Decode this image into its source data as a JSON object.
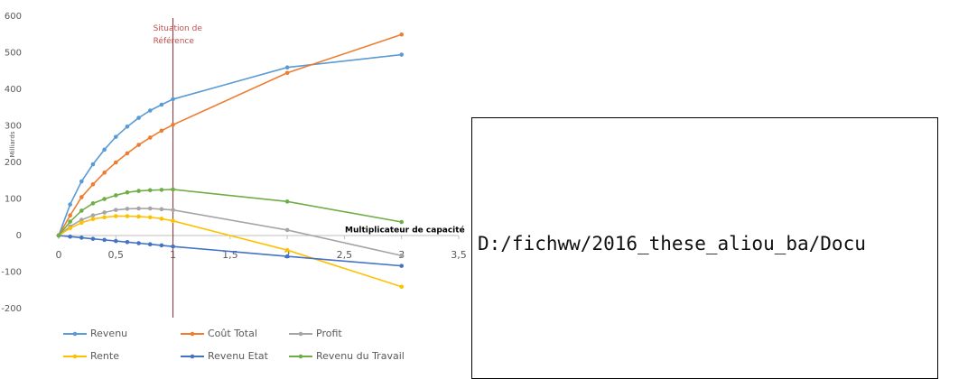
{
  "chart_data": {
    "type": "line",
    "ylabel": "Milliards",
    "xlabel": "Multiplicateur de capacité",
    "annotation": {
      "x": 1,
      "text": "Situation de Référence"
    },
    "x": [
      0,
      0.1,
      0.2,
      0.3,
      0.4,
      0.5,
      0.6,
      0.7,
      0.8,
      0.9,
      1,
      2,
      3
    ],
    "series": [
      {
        "name": "Revenu",
        "color": "#5b9bd5",
        "values": [
          0,
          85,
          148,
          195,
          235,
          270,
          298,
          322,
          342,
          358,
          373,
          460,
          495
        ]
      },
      {
        "name": "Coût Total",
        "color": "#ed7d31",
        "values": [
          0,
          55,
          105,
          140,
          172,
          200,
          225,
          248,
          268,
          287,
          303,
          445,
          550
        ]
      },
      {
        "name": "Profit",
        "color": "#a5a5a5",
        "values": [
          0,
          25,
          43,
          55,
          63,
          70,
          73,
          74,
          74,
          72,
          70,
          15,
          -55
        ]
      },
      {
        "name": "Rente",
        "color": "#ffc000",
        "values": [
          0,
          20,
          35,
          45,
          50,
          53,
          53,
          52,
          50,
          46,
          40,
          -40,
          -140
        ]
      },
      {
        "name": "Revenu Etat",
        "color": "#4472c4",
        "values": [
          0,
          -3,
          -6,
          -9,
          -12,
          -15,
          -18,
          -21,
          -24,
          -27,
          -30,
          -57,
          -83
        ]
      },
      {
        "name": "Revenu du Travail",
        "color": "#70ad47",
        "values": [
          0,
          38,
          68,
          88,
          100,
          110,
          118,
          122,
          124,
          125,
          126,
          93,
          37
        ]
      }
    ],
    "xlim": [
      0,
      3.5
    ],
    "xticks": [
      0,
      {
        "value": 0.5,
        "label": "0,5"
      },
      1,
      {
        "value": 1.5,
        "label": "1,5"
      },
      2,
      {
        "value": 2.5,
        "label": "2,5"
      },
      3,
      {
        "value": 3.5,
        "label": "3,5"
      }
    ],
    "ylim": [
      -200,
      600
    ],
    "yticks": [
      -200,
      -100,
      0,
      100,
      200,
      300,
      400,
      500,
      600
    ]
  },
  "document": {
    "path": "D:/fichww/2016_these_aliou_ba/Docu"
  }
}
